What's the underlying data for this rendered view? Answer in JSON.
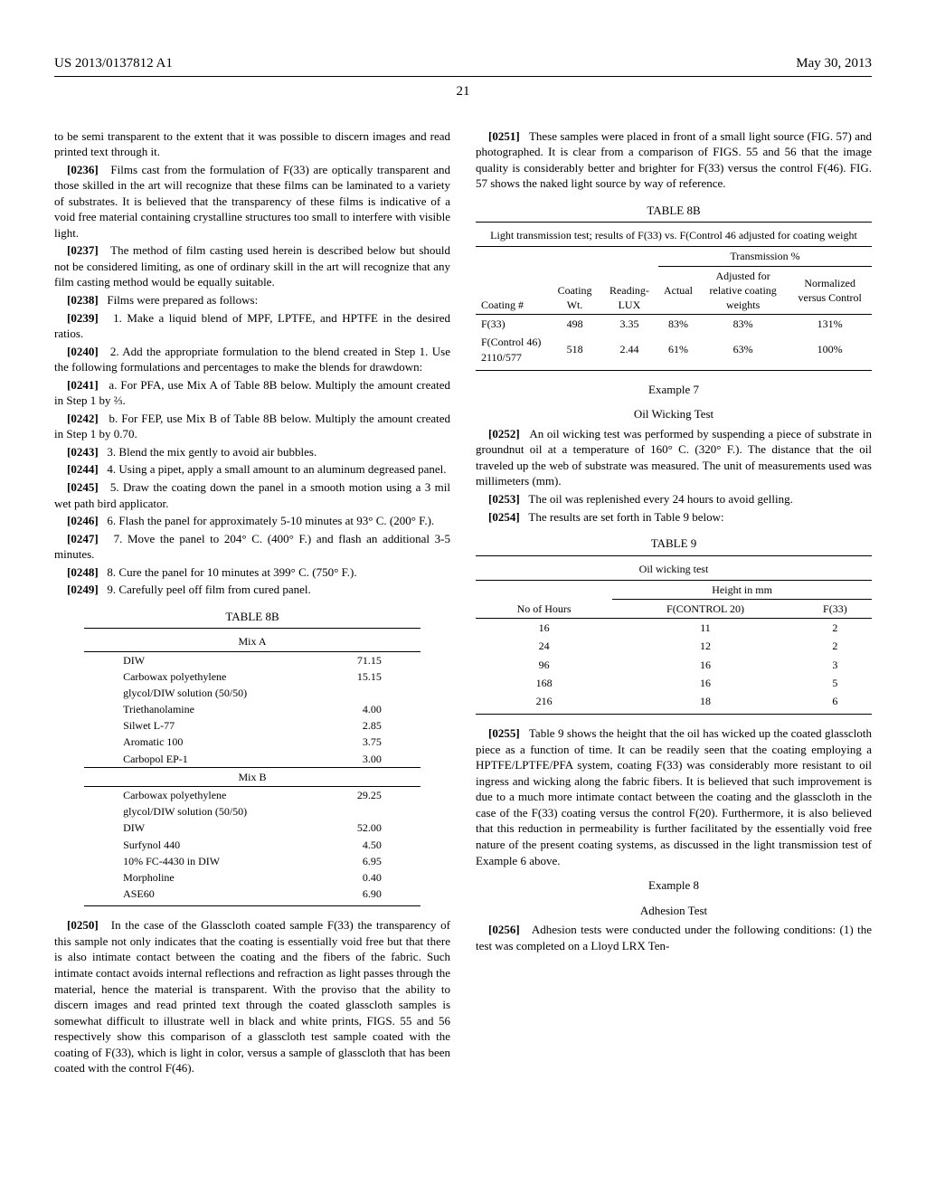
{
  "header": {
    "left": "US 2013/0137812 A1",
    "right": "May 30, 2013"
  },
  "page_number": "21",
  "col1": {
    "p0": "to be semi transparent to the extent that it was possible to discern images and read printed text through it.",
    "p236": "Films cast from the formulation of F(33) are optically transparent and those skilled in the art will recognize that these films can be laminated to a variety of substrates. It is believed that the transparency of these films is indicative of a void free material containing crystalline structures too small to interfere with visible light.",
    "p237": "The method of film casting used herein is described below but should not be considered limiting, as one of ordinary skill in the art will recognize that any film casting method would be equally suitable.",
    "p238": "Films were prepared as follows:",
    "p239": "1. Make a liquid blend of MPF, LPTFE, and HPTFE in the desired ratios.",
    "p240": "2. Add the appropriate formulation to the blend created in Step 1. Use the following formulations and percentages to make the blends for drawdown:",
    "p241": "a. For PFA, use Mix A of Table 8B below. Multiply the amount created in Step 1 by ⅔.",
    "p242": "b. For FEP, use Mix B of Table 8B below. Multiply the amount created in Step 1 by 0.70.",
    "p243": "3. Blend the mix gently to avoid air bubbles.",
    "p244": "4. Using a pipet, apply a small amount to an aluminum degreased panel.",
    "p245": "5. Draw the coating down the panel in a smooth motion using a 3 mil wet path bird applicator.",
    "p246": "6. Flash the panel for approximately 5-10 minutes at 93° C. (200° F.).",
    "p247": "7. Move the panel to 204° C. (400° F.) and flash an additional 3-5 minutes.",
    "p248": "8. Cure the panel for 10 minutes at 399° C. (750° F.).",
    "p249": "9. Carefully peel off film from cured panel.",
    "p250": "In the case of the Glasscloth coated sample F(33) the transparency of this sample not only indicates that the coating is essentially void free but that there is also intimate contact between the coating and the fibers of the fabric. Such intimate contact avoids internal reflections and refraction as light passes through the material, hence the material is transparent. With the proviso that the ability to discern images and read printed text through the coated glasscloth samples is somewhat difficult to illustrate well in black and white prints, FIGS. 55 and 56 respectively show this comparison of a glasscloth test sample coated with the coating of F(33), which is light in color, versus a sample of glasscloth that has been coated with the control F(46)."
  },
  "table8b_mix": {
    "title": "TABLE 8B",
    "mixa_label": "Mix A",
    "mixb_label": "Mix B",
    "mixa": [
      [
        "DIW",
        "71.15"
      ],
      [
        "Carbowax polyethylene",
        "15.15"
      ],
      [
        "glycol/DIW solution (50/50)",
        ""
      ],
      [
        "Triethanolamine",
        "4.00"
      ],
      [
        "Silwet L-77",
        "2.85"
      ],
      [
        "Aromatic 100",
        "3.75"
      ],
      [
        "Carbopol EP-1",
        "3.00"
      ]
    ],
    "mixb": [
      [
        "Carbowax polyethylene",
        "29.25"
      ],
      [
        "glycol/DIW solution (50/50)",
        ""
      ],
      [
        "DIW",
        "52.00"
      ],
      [
        "Surfynol 440",
        "4.50"
      ],
      [
        "10% FC-4430 in DIW",
        "6.95"
      ],
      [
        "Morpholine",
        "0.40"
      ],
      [
        "ASE60",
        "6.90"
      ]
    ]
  },
  "col2": {
    "p251": "These samples were placed in front of a small light source (FIG. 57) and photographed. It is clear from a comparison of FIGS. 55 and 56 that the image quality is considerably better and brighter for F(33) versus the control F(46). FIG. 57 shows the naked light source by way of reference.",
    "table8b2": {
      "title": "TABLE 8B",
      "caption": "Light transmission test; results of F(33) vs. F(Control 46 adjusted for coating weight",
      "trans_label": "Transmission %",
      "headers": [
        "Coating #",
        "Coating Wt.",
        "Reading-LUX",
        "Actual",
        "Adjusted for relative coating weights",
        "Normalized versus Control"
      ],
      "rows": [
        [
          "F(33)",
          "498",
          "3.35",
          "83%",
          "83%",
          "131%"
        ],
        [
          "F(Control 46) 2110/577",
          "518",
          "2.44",
          "61%",
          "63%",
          "100%"
        ]
      ]
    },
    "example7_label": "Example 7",
    "example7_title": "Oil Wicking Test",
    "p252": "An oil wicking test was performed by suspending a piece of substrate in groundnut oil at a temperature of 160° C. (320° F.). The distance that the oil traveled up the web of substrate was measured. The unit of measurements used was millimeters (mm).",
    "p253": "The oil was replenished every 24 hours to avoid gelling.",
    "p254": "The results are set forth in Table 9 below:",
    "table9": {
      "title": "TABLE 9",
      "caption": "Oil wicking test",
      "height_label": "Height in mm",
      "headers": [
        "No of Hours",
        "F(CONTROL 20)",
        "F(33)"
      ],
      "rows": [
        [
          "16",
          "11",
          "2"
        ],
        [
          "24",
          "12",
          "2"
        ],
        [
          "96",
          "16",
          "3"
        ],
        [
          "168",
          "16",
          "5"
        ],
        [
          "216",
          "18",
          "6"
        ]
      ]
    },
    "p255": "Table 9 shows the height that the oil has wicked up the coated glasscloth piece as a function of time. It can be readily seen that the coating employing a HPTFE/LPTFE/PFA system, coating F(33) was considerably more resistant to oil ingress and wicking along the fabric fibers. It is believed that such improvement is due to a much more intimate contact between the coating and the glasscloth in the case of the F(33) coating versus the control F(20). Furthermore, it is also believed that this reduction in permeability is further facilitated by the essentially void free nature of the present coating systems, as discussed in the light transmission test of Example 6 above.",
    "example8_label": "Example 8",
    "example8_title": "Adhesion Test",
    "p256": "Adhesion tests were conducted under the following conditions: (1) the test was completed on a Lloyd LRX Ten-"
  }
}
